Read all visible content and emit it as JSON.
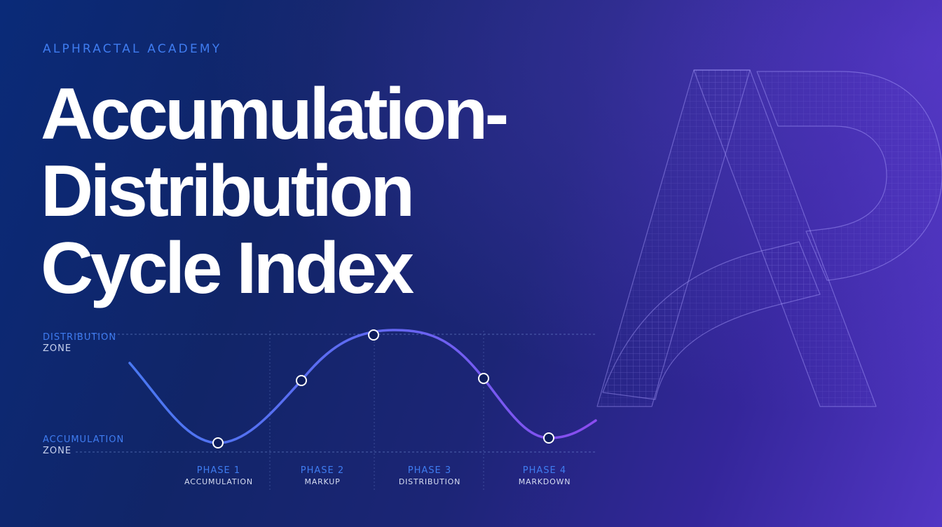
{
  "brand": "ALPHRACTAL ACADEMY",
  "title_lines": [
    "Accumulation-",
    "Distribution",
    "Cycle Index"
  ],
  "zones": {
    "top": {
      "line1": "DISTRIBUTION",
      "line2": "ZONE"
    },
    "bottom": {
      "line1": "ACCUMULATION",
      "line2": "ZONE"
    }
  },
  "phases": [
    {
      "number": "PHASE 1",
      "name": "ACCUMULATION"
    },
    {
      "number": "PHASE 2",
      "name": "MARKUP"
    },
    {
      "number": "PHASE 3",
      "name": "DISTRIBUTION"
    },
    {
      "number": "PHASE 4",
      "name": "MARKDOWN"
    }
  ],
  "logo_icon": "ap-wireframe-logo-icon",
  "colors": {
    "accent": "#3f7cf0",
    "curve_start": "#4a78f2",
    "curve_end": "#8a4cf0",
    "title": "#ffffff"
  }
}
